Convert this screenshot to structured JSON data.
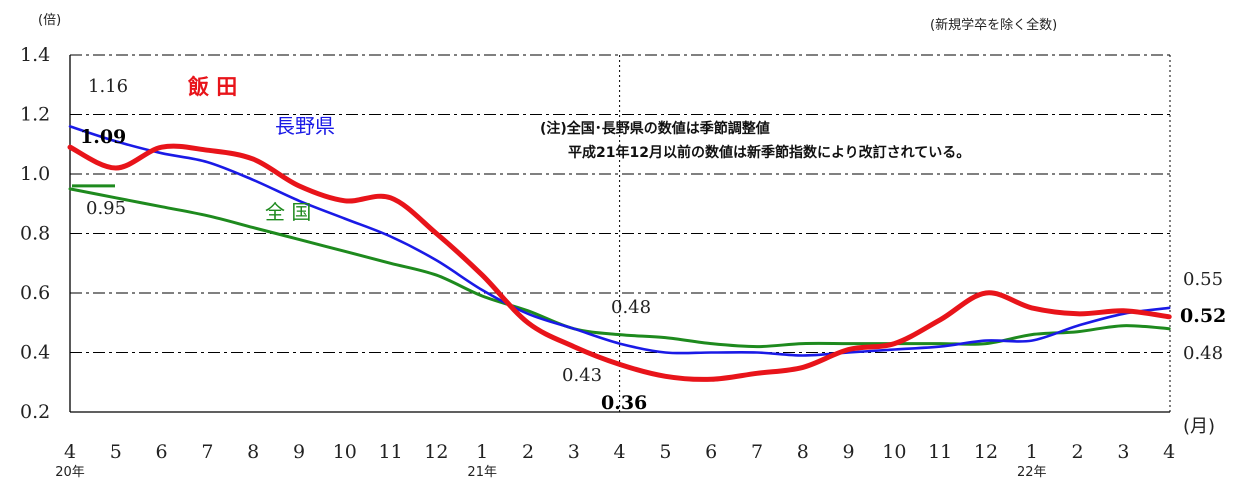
{
  "chart_data": {
    "type": "line",
    "y_unit_label": "(倍)",
    "x_unit_label": "(月)",
    "top_note": "(新規学卒を除く全数)",
    "note_line1": "(注)全国･長野県の数値は季節調整値",
    "note_line2": "平成21年12月以前の数値は新季節指数により改訂されている。",
    "ylim": [
      0.2,
      1.4
    ],
    "yticks": [
      "0.2",
      "0.4",
      "0.6",
      "0.8",
      "1.0",
      "1.2",
      "1.4"
    ],
    "categories": [
      "4",
      "5",
      "6",
      "7",
      "8",
      "9",
      "10",
      "11",
      "12",
      "1",
      "2",
      "3",
      "4",
      "5",
      "6",
      "7",
      "8",
      "9",
      "10",
      "11",
      "12",
      "1",
      "2",
      "3",
      "4"
    ],
    "year_labels": [
      {
        "index": 0,
        "text": "20年"
      },
      {
        "index": 9,
        "text": "21年"
      },
      {
        "index": 21,
        "text": "22年"
      }
    ],
    "grid": "dash-dot horizontal, vertical at 21年4月",
    "series": [
      {
        "name": "飯 田",
        "color": "#e8141a",
        "values": [
          1.09,
          1.02,
          1.09,
          1.08,
          1.05,
          0.96,
          0.91,
          0.92,
          0.8,
          0.66,
          0.5,
          0.42,
          0.36,
          0.32,
          0.31,
          0.33,
          0.35,
          0.41,
          0.43,
          0.51,
          0.6,
          0.55,
          0.53,
          0.54,
          0.52
        ]
      },
      {
        "name": "長野県",
        "color": "#1a1ae6",
        "values": [
          1.16,
          1.11,
          1.07,
          1.04,
          0.98,
          0.91,
          0.85,
          0.79,
          0.71,
          0.61,
          0.53,
          0.48,
          0.43,
          0.4,
          0.4,
          0.4,
          0.39,
          0.4,
          0.41,
          0.42,
          0.44,
          0.44,
          0.49,
          0.53,
          0.55
        ]
      },
      {
        "name": "全 国",
        "color": "#1e8a1e",
        "values": [
          0.95,
          0.92,
          0.89,
          0.86,
          0.82,
          0.78,
          0.74,
          0.7,
          0.66,
          0.59,
          0.54,
          0.48,
          0.46,
          0.45,
          0.43,
          0.42,
          0.43,
          0.43,
          0.43,
          0.43,
          0.43,
          0.46,
          0.47,
          0.49,
          0.48
        ]
      }
    ],
    "data_labels": [
      {
        "text": "1.16"
      },
      {
        "text": "1.09"
      },
      {
        "text": "0.95"
      },
      {
        "text": "0.48"
      },
      {
        "text": "0.43"
      },
      {
        "text": "0.36"
      },
      {
        "text": "0.55"
      },
      {
        "text": "0.52"
      },
      {
        "text": "0.48"
      }
    ]
  }
}
